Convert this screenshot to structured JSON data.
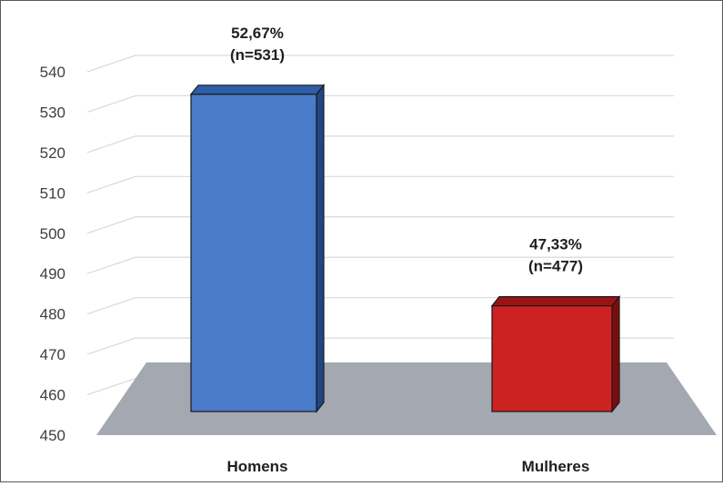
{
  "chart_data": {
    "type": "bar",
    "style": "3d",
    "categories": [
      "Homens",
      "Mulheres"
    ],
    "values": [
      531,
      477
    ],
    "data_labels": [
      [
        "52,67%",
        "(n=531)"
      ],
      [
        "47,33%",
        "(n=477)"
      ]
    ],
    "yticks": [
      "450",
      "460",
      "470",
      "480",
      "490",
      "500",
      "510",
      "520",
      "530",
      "540"
    ],
    "ylim": [
      450,
      540
    ],
    "grid": true,
    "legend": "none",
    "colors": {
      "bar_front": [
        "#4a7bc8",
        "#cc2222"
      ],
      "bar_top": [
        "#2f5ea8",
        "#991515"
      ],
      "bar_side": [
        "#1f4685",
        "#7a0e0e"
      ],
      "floor": "#a4a8b0",
      "gridline": "#d9d9d9",
      "bar_edge": "#1a1a1a"
    }
  }
}
